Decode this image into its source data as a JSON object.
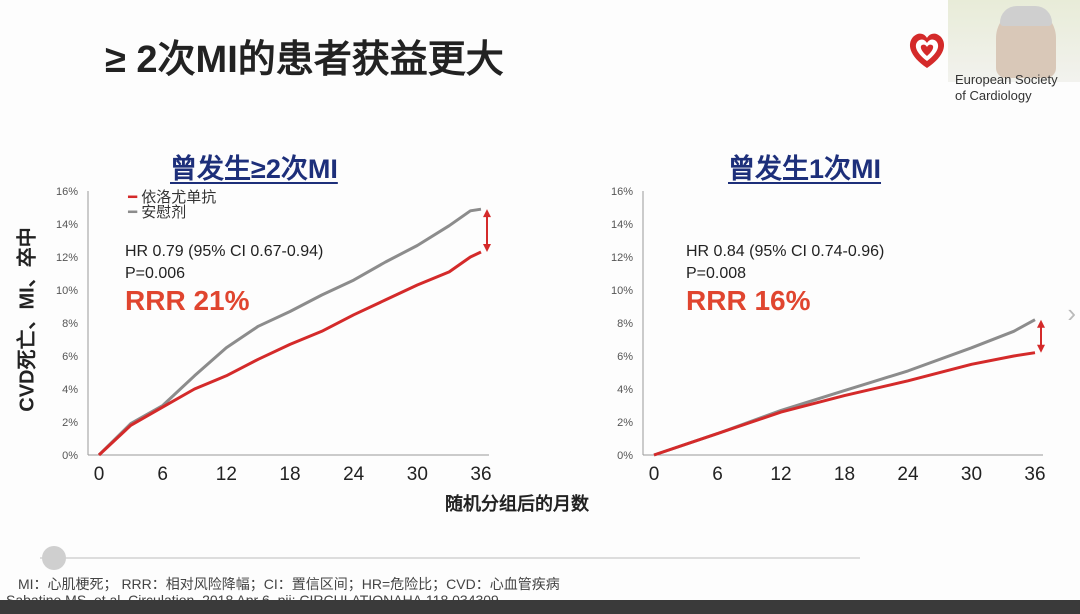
{
  "slide": {
    "title": "≥ 2次MI的患者获益更大",
    "logo_text_1": "European Society",
    "logo_text_2": "of Cardiology",
    "y_axis_label": "CVD死亡、MI、卒中",
    "x_axis_label": "随机分组后的月数",
    "footnote_1": "MI：心肌梗死； RRR：相对风险降幅；CI：置信区间；HR=危险比；CVD：心血管疾病",
    "footnote_2": "Sabatine MS, et al. Circulation. 2018 Apr 6. pii: CIRCULATIONAHA.118.034309."
  },
  "colors": {
    "treatment": "#d42a2a",
    "placebo": "#8c8c8c",
    "rrr": "#e0452f",
    "panel_title": "#1d2f7a"
  },
  "chart_data": [
    {
      "type": "line",
      "title": "曾发生≥2次MI",
      "hr_text": "HR 0.79 (95% CI 0.67-0.94)",
      "p_text": "P=0.006",
      "rrr_text": "RRR 21%",
      "xticks": [
        "0",
        "6",
        "12",
        "18",
        "24",
        "30",
        "36"
      ],
      "yticks": [
        "0%",
        "2%",
        "4%",
        "6%",
        "8%",
        "10%",
        "12%",
        "14%",
        "16%"
      ],
      "xlim": [
        0,
        36
      ],
      "ylim": [
        0,
        16
      ],
      "legend": "top-left",
      "series": [
        {
          "name": "依洛尤单抗",
          "color": "#d42a2a",
          "x": [
            0,
            3,
            6,
            9,
            12,
            15,
            18,
            21,
            24,
            27,
            30,
            33,
            35,
            36
          ],
          "y": [
            0,
            1.8,
            2.9,
            4.0,
            4.8,
            5.8,
            6.7,
            7.5,
            8.5,
            9.4,
            10.3,
            11.1,
            12.0,
            12.3
          ]
        },
        {
          "name": "安慰剂",
          "color": "#8c8c8c",
          "x": [
            0,
            3,
            6,
            9,
            12,
            15,
            18,
            21,
            24,
            27,
            30,
            33,
            35,
            36
          ],
          "y": [
            0,
            1.9,
            3.0,
            4.8,
            6.5,
            7.8,
            8.7,
            9.7,
            10.6,
            11.7,
            12.7,
            13.9,
            14.8,
            14.9
          ]
        }
      ]
    },
    {
      "type": "line",
      "title": "曾发生1次MI",
      "hr_text": "HR 0.84 (95% CI 0.74-0.96)",
      "p_text": "P=0.008",
      "rrr_text": "RRR 16%",
      "xticks": [
        "0",
        "6",
        "12",
        "18",
        "24",
        "30",
        "36"
      ],
      "yticks": [
        "0%",
        "2%",
        "4%",
        "6%",
        "8%",
        "10%",
        "12%",
        "14%",
        "16%"
      ],
      "xlim": [
        0,
        36
      ],
      "ylim": [
        0,
        16
      ],
      "series": [
        {
          "name": "依洛尤单抗",
          "color": "#d42a2a",
          "x": [
            0,
            6,
            12,
            18,
            24,
            30,
            34,
            36
          ],
          "y": [
            0,
            1.3,
            2.6,
            3.6,
            4.5,
            5.5,
            6.0,
            6.2
          ]
        },
        {
          "name": "安慰剂",
          "color": "#8c8c8c",
          "x": [
            0,
            6,
            12,
            18,
            24,
            30,
            34,
            36
          ],
          "y": [
            0,
            1.3,
            2.7,
            3.9,
            5.1,
            6.5,
            7.5,
            8.2
          ]
        }
      ]
    }
  ]
}
